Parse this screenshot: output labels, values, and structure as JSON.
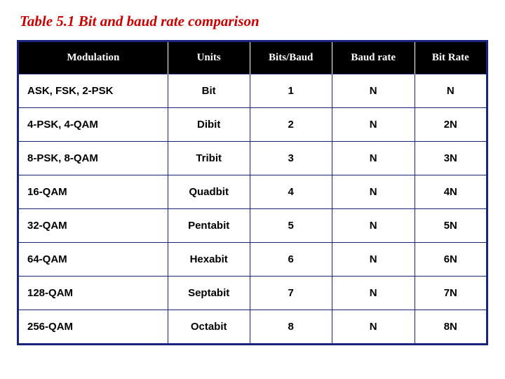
{
  "title": "Table 5.1  Bit and baud rate comparison",
  "colors": {
    "title": "#cc0000",
    "header_bg": "#000000",
    "header_fg": "#ffffff",
    "border": "#1a237e",
    "cell_fg": "#000000",
    "bg": "#ffffff"
  },
  "table": {
    "columns": [
      "Modulation",
      "Units",
      "Bits/Baud",
      "Baud rate",
      "Bit Rate"
    ],
    "rows": [
      [
        "ASK, FSK, 2-PSK",
        "Bit",
        "1",
        "N",
        "N"
      ],
      [
        "4-PSK, 4-QAM",
        "Dibit",
        "2",
        "N",
        "2N"
      ],
      [
        "8-PSK, 8-QAM",
        "Tribit",
        "3",
        "N",
        "3N"
      ],
      [
        "16-QAM",
        "Quadbit",
        "4",
        "N",
        "4N"
      ],
      [
        "32-QAM",
        "Pentabit",
        "5",
        "N",
        "5N"
      ],
      [
        "64-QAM",
        "Hexabit",
        "6",
        "N",
        "6N"
      ],
      [
        "128-QAM",
        "Septabit",
        "7",
        "N",
        "7N"
      ],
      [
        "256-QAM",
        "Octabit",
        "8",
        "N",
        "8N"
      ]
    ]
  }
}
